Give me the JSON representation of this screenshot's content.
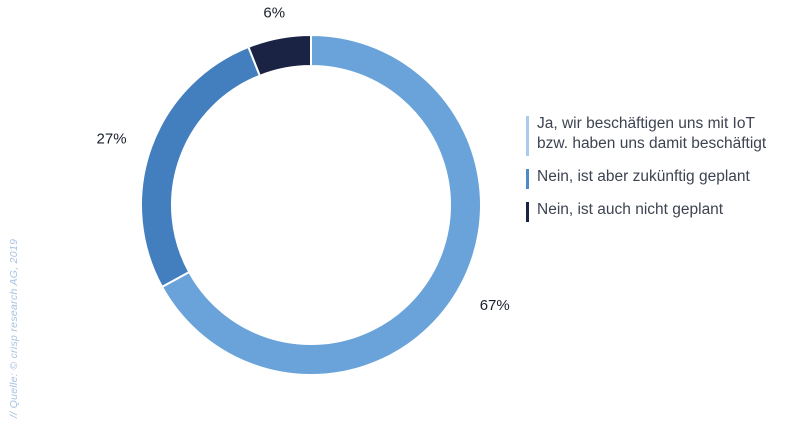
{
  "chart_data": {
    "type": "pie",
    "subtype": "donut",
    "slices": [
      {
        "label": "Ja, wir beschäftigen uns mit IoT bzw. haben uns damit beschäftigt",
        "value": 67,
        "display": "67%",
        "color": "#6aa3d9"
      },
      {
        "label": "Nein, ist aber zukünftig geplant",
        "value": 27,
        "display": "27%",
        "color": "#437ebf"
      },
      {
        "label": "Nein, ist auch nicht geplant",
        "value": 6,
        "display": "6%",
        "color": "#1a2344"
      }
    ],
    "legend_position": "right"
  },
  "legend": {
    "items": [
      {
        "lines": [
          "Ja, wir beschäftigen uns mit IoT",
          "bzw. haben uns damit beschäftigt"
        ],
        "color": "#a9cbed"
      },
      {
        "lines": [
          "Nein, ist aber zukünftig geplant"
        ],
        "color": "#4f89c9"
      },
      {
        "lines": [
          "Nein, ist auch nicht geplant"
        ],
        "color": "#1a2344"
      }
    ]
  },
  "source": "// Quelle: © crisp research AG, 2019"
}
